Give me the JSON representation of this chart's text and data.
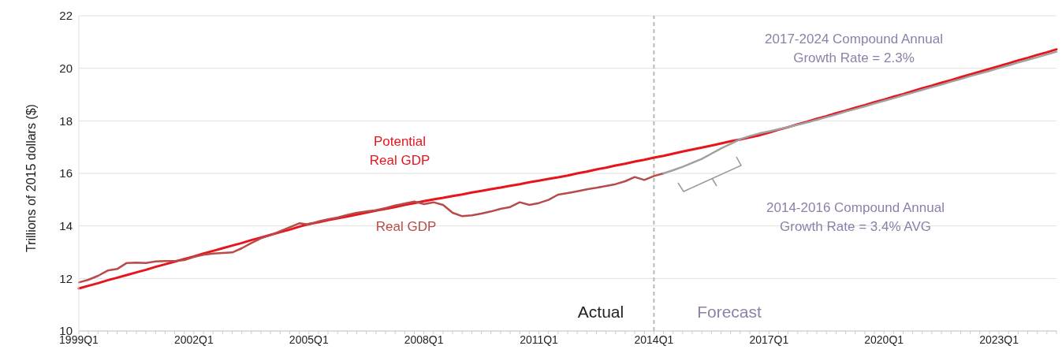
{
  "chart_data": {
    "type": "line",
    "ylabel": "Trillions of 2015 dollars ($)",
    "categories": [
      "1999Q1",
      null,
      null,
      null,
      null,
      null,
      null,
      null,
      null,
      null,
      null,
      null,
      "2002Q1",
      null,
      null,
      null,
      null,
      null,
      null,
      null,
      null,
      null,
      null,
      null,
      "2005Q1",
      null,
      null,
      null,
      null,
      null,
      null,
      null,
      null,
      null,
      null,
      null,
      "2008Q1",
      null,
      null,
      null,
      null,
      null,
      null,
      null,
      null,
      null,
      null,
      null,
      "2011Q1",
      null,
      null,
      null,
      null,
      null,
      null,
      null,
      null,
      null,
      null,
      null,
      "2014Q1",
      null,
      null,
      null,
      null,
      null,
      null,
      null,
      null,
      null,
      null,
      null,
      "2017Q1",
      null,
      null,
      null,
      null,
      null,
      null,
      null,
      null,
      null,
      null,
      null,
      "2020Q1",
      null,
      null,
      null,
      null,
      null,
      null,
      null,
      null,
      null,
      null,
      null,
      "2023Q1",
      null,
      null,
      null,
      null,
      null,
      null
    ],
    "series": [
      {
        "name": "Potential Real GDP",
        "color": "#e8141c",
        "values": [
          11.62,
          11.72,
          11.82,
          11.93,
          12.03,
          12.13,
          12.23,
          12.33,
          12.44,
          12.54,
          12.64,
          12.74,
          12.84,
          12.95,
          13.05,
          13.15,
          13.25,
          13.35,
          13.46,
          13.56,
          13.66,
          13.76,
          13.86,
          13.97,
          14.07,
          14.14,
          14.22,
          14.29,
          14.36,
          14.43,
          14.51,
          14.58,
          14.65,
          14.72,
          14.8,
          14.87,
          14.94,
          15.01,
          15.07,
          15.14,
          15.2,
          15.27,
          15.33,
          15.4,
          15.46,
          15.53,
          15.59,
          15.66,
          15.72,
          15.79,
          15.85,
          15.92,
          16.0,
          16.07,
          16.15,
          16.22,
          16.3,
          16.37,
          16.45,
          16.52,
          16.6,
          16.67,
          16.75,
          16.83,
          16.91,
          16.98,
          17.06,
          17.14,
          17.22,
          17.29,
          17.37,
          17.45,
          17.55,
          17.66,
          17.76,
          17.87,
          17.97,
          18.08,
          18.18,
          18.29,
          18.39,
          18.5,
          18.6,
          18.71,
          18.81,
          18.92,
          19.02,
          19.13,
          19.24,
          19.34,
          19.45,
          19.55,
          19.66,
          19.77,
          19.87,
          19.98,
          20.08,
          20.19,
          20.3,
          20.4,
          20.51,
          20.61,
          20.72
        ]
      },
      {
        "name": "Real GDP",
        "color": "#b84a4a",
        "values": [
          11.85,
          11.95,
          12.1,
          12.3,
          12.36,
          12.59,
          12.6,
          12.59,
          12.65,
          12.66,
          12.66,
          12.7,
          12.82,
          12.9,
          12.95,
          12.97,
          12.99,
          13.15,
          13.35,
          13.53,
          13.65,
          13.8,
          13.95,
          14.1,
          14.05,
          14.17,
          14.25,
          14.32,
          14.42,
          14.5,
          14.55,
          14.6,
          14.68,
          14.78,
          14.85,
          14.93,
          14.83,
          14.9,
          14.8,
          14.5,
          14.37,
          14.4,
          14.47,
          14.55,
          14.65,
          14.72,
          14.9,
          14.8,
          14.87,
          14.99,
          15.19,
          15.25,
          15.32,
          15.39,
          15.45,
          15.52,
          15.59,
          15.7,
          15.86,
          15.75,
          15.9,
          16.0,
          null,
          null,
          null,
          null,
          null,
          null,
          null,
          null,
          null,
          null,
          null,
          null,
          null,
          null,
          null,
          null,
          null,
          null,
          null,
          null,
          null,
          null,
          null,
          null,
          null,
          null,
          null,
          null,
          null,
          null,
          null,
          null,
          null,
          null,
          null,
          null,
          null,
          null,
          null,
          null,
          null
        ]
      },
      {
        "color": "#a0a0a0",
        "values": [
          null,
          null,
          null,
          null,
          null,
          null,
          null,
          null,
          null,
          null,
          null,
          null,
          null,
          null,
          null,
          null,
          null,
          null,
          null,
          null,
          null,
          null,
          null,
          null,
          null,
          null,
          null,
          null,
          null,
          null,
          null,
          null,
          null,
          null,
          null,
          null,
          null,
          null,
          null,
          null,
          null,
          null,
          null,
          null,
          null,
          null,
          null,
          null,
          null,
          null,
          null,
          null,
          null,
          null,
          null,
          null,
          null,
          null,
          null,
          null,
          null,
          16.0,
          16.12,
          16.25,
          16.4,
          16.55,
          16.75,
          16.95,
          17.12,
          17.3,
          17.42,
          17.52,
          17.6,
          17.68,
          17.76,
          17.85,
          17.94,
          18.04,
          18.14,
          18.24,
          18.35,
          18.45,
          18.55,
          18.66,
          18.76,
          18.86,
          18.97,
          19.07,
          19.18,
          19.28,
          19.38,
          19.49,
          19.59,
          19.7,
          19.8,
          19.9,
          20.01,
          20.11,
          20.22,
          20.32,
          20.42,
          20.53,
          20.63
        ]
      }
    ],
    "ylim": [
      10,
      22
    ],
    "yticks": [
      10,
      12,
      14,
      16,
      18,
      20,
      22
    ],
    "grid": "y",
    "marker": "none",
    "line_style": "solid",
    "ref_lines": [
      {
        "axis": "x",
        "value": "2014Q1",
        "color": "#b8b8b8",
        "line_style": "dashed"
      }
    ],
    "annotations": [
      "Actual",
      "Forecast",
      "2017-2024 Compound Annual Growth Rate = 2.3%",
      "2014-2016 Compound Annual Growth Rate = 3.4% AVG"
    ]
  }
}
